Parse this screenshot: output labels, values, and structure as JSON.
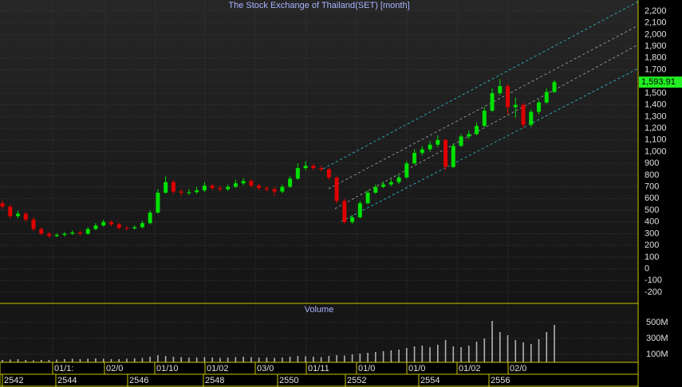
{
  "chart_data": [
    {
      "type": "candlestick",
      "title": "The Stock Exchange of Thailand(SET) [month]",
      "up_color": "#00e000",
      "down_color": "#e00000",
      "open": [
        560,
        530,
        450,
        470,
        420,
        340,
        300,
        280,
        290,
        300,
        310,
        300,
        340,
        370,
        400,
        380,
        350,
        345,
        355,
        390,
        480,
        650,
        740,
        660,
        650,
        655,
        670,
        710,
        690,
        680,
        700,
        730,
        750,
        710,
        690,
        680,
        660,
        700,
        770,
        860,
        880,
        860,
        850,
        780,
        580,
        400,
        440,
        560,
        650,
        700,
        720,
        740,
        780,
        900,
        990,
        1020,
        1060,
        1100,
        870,
        1050,
        1130,
        1150,
        1220,
        1350,
        1500,
        1560,
        1380,
        1400,
        1230,
        1340,
        1420,
        1510
      ],
      "high": [
        585,
        550,
        495,
        490,
        440,
        355,
        315,
        305,
        315,
        330,
        325,
        355,
        390,
        420,
        415,
        395,
        365,
        370,
        410,
        500,
        680,
        790,
        760,
        680,
        680,
        700,
        740,
        725,
        710,
        720,
        760,
        775,
        765,
        725,
        705,
        700,
        720,
        790,
        900,
        920,
        895,
        880,
        860,
        790,
        600,
        460,
        580,
        670,
        720,
        745,
        765,
        800,
        920,
        1020,
        1050,
        1090,
        1140,
        1110,
        1070,
        1150,
        1180,
        1250,
        1380,
        1540,
        1620,
        1580,
        1460,
        1420,
        1360,
        1440,
        1540,
        1610
      ],
      "low": [
        510,
        430,
        430,
        400,
        320,
        285,
        265,
        270,
        275,
        290,
        285,
        290,
        330,
        360,
        365,
        335,
        330,
        335,
        345,
        380,
        470,
        640,
        640,
        620,
        630,
        640,
        655,
        670,
        660,
        665,
        690,
        715,
        695,
        670,
        660,
        620,
        645,
        690,
        760,
        840,
        840,
        830,
        760,
        560,
        380,
        385,
        430,
        550,
        640,
        690,
        705,
        725,
        770,
        890,
        970,
        1000,
        1040,
        840,
        860,
        1040,
        1110,
        1140,
        1210,
        1340,
        1480,
        1320,
        1290,
        1200,
        1210,
        1320,
        1410,
        1500
      ],
      "close": [
        530,
        450,
        470,
        420,
        340,
        300,
        280,
        290,
        300,
        310,
        300,
        340,
        370,
        400,
        380,
        350,
        345,
        355,
        390,
        480,
        650,
        740,
        660,
        650,
        655,
        670,
        710,
        690,
        680,
        700,
        730,
        750,
        710,
        690,
        680,
        660,
        700,
        770,
        860,
        880,
        860,
        850,
        780,
        580,
        400,
        440,
        560,
        650,
        700,
        720,
        740,
        780,
        900,
        990,
        1020,
        1060,
        1100,
        870,
        1050,
        1130,
        1150,
        1220,
        1350,
        1500,
        1560,
        1380,
        1400,
        1230,
        1340,
        1420,
        1510,
        1594
      ],
      "last_price": {
        "value": 1593.91,
        "label": "1,593.91"
      },
      "ylim": [
        -295,
        2295
      ],
      "yticks": [
        -200,
        -100,
        0,
        100,
        200,
        300,
        400,
        500,
        600,
        700,
        800,
        900,
        {
          "value": 1000,
          "label": "1,000"
        },
        {
          "value": 1100,
          "label": "1,100"
        },
        {
          "value": 1200,
          "label": "1,200"
        },
        {
          "value": 1300,
          "label": "1,300"
        },
        {
          "value": 1400,
          "label": "1,400"
        },
        {
          "value": 1500,
          "label": "1,500"
        },
        {
          "value": 1600,
          "label": "1,600"
        },
        {
          "value": 1700,
          "label": "1,700"
        },
        {
          "value": 1800,
          "label": "1,800"
        },
        {
          "value": 1900,
          "label": "1,900"
        },
        {
          "value": 2000,
          "label": "2,000"
        },
        {
          "value": 2100,
          "label": "2,100"
        },
        {
          "value": 2200,
          "label": "2,200"
        }
      ],
      "grid": true
    },
    {
      "type": "bar",
      "title": "Volume",
      "color": "#b0b0b0",
      "values": [
        30,
        35,
        40,
        30,
        25,
        30,
        30,
        35,
        40,
        45,
        40,
        45,
        50,
        45,
        40,
        40,
        45,
        50,
        55,
        70,
        90,
        80,
        70,
        65,
        60,
        60,
        65,
        60,
        55,
        60,
        65,
        70,
        65,
        60,
        60,
        55,
        60,
        70,
        80,
        75,
        70,
        65,
        80,
        90,
        85,
        100,
        110,
        120,
        130,
        140,
        150,
        160,
        180,
        200,
        210,
        190,
        220,
        280,
        200,
        190,
        210,
        260,
        300,
        520,
        380,
        340,
        280,
        250,
        230,
        290,
        380,
        470
      ],
      "ylim": [
        0,
        740
      ],
      "yticks": [
        {
          "value": 100,
          "label": "100M"
        },
        {
          "value": 300,
          "label": "300M"
        },
        {
          "value": 500,
          "label": "500M"
        }
      ],
      "x_labels_top": [
        "01/1:",
        "02/0",
        "01/10",
        "01/02",
        "03/0",
        "01/11",
        "01/0",
        "01/0",
        "01/02",
        "02/0"
      ],
      "x_labels_bottom": [
        "2542",
        "2544",
        "2546",
        "2548",
        "2550",
        "2552",
        "2554",
        "2556"
      ]
    }
  ]
}
